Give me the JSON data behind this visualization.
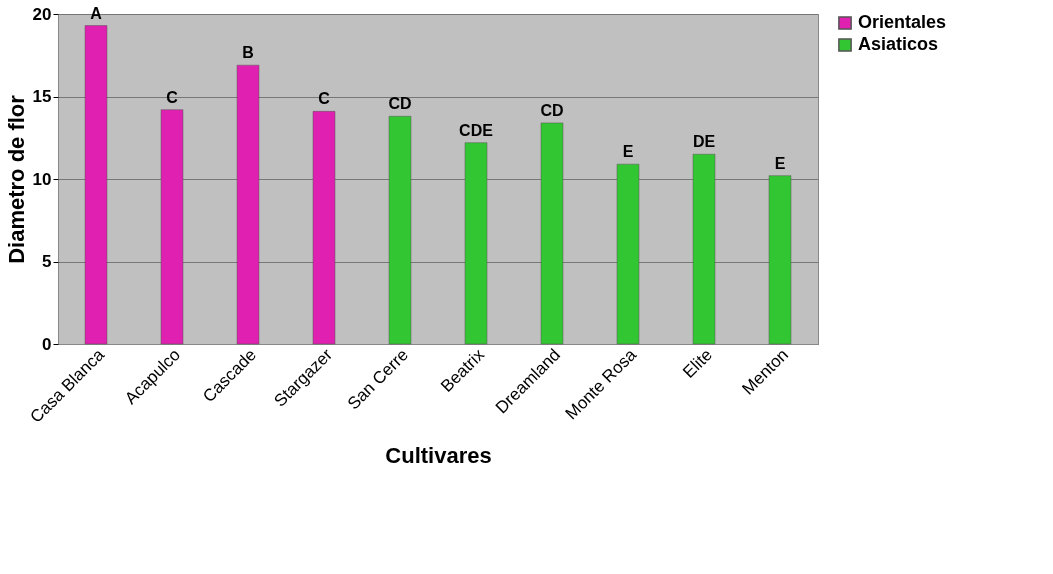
{
  "chart_data": {
    "type": "bar",
    "xlabel": "Cultivares",
    "ylabel": "Diametro de flor",
    "categories": [
      "Casa Blanca",
      "Acapulco",
      "Cascade",
      "Stargazer",
      "San Cerre",
      "Beatrix",
      "Dreamland",
      "Monte Rosa",
      "Elite",
      "Menton"
    ],
    "series": [
      {
        "name": "Orientales",
        "color": "#e020b0",
        "values": [
          19.3,
          14.2,
          16.9,
          14.1,
          null,
          null,
          null,
          null,
          null,
          null
        ],
        "value_labels": [
          "A",
          "C",
          "B",
          "C",
          null,
          null,
          null,
          null,
          null,
          null
        ]
      },
      {
        "name": "Asiaticos",
        "color": "#33c633",
        "values": [
          null,
          null,
          null,
          null,
          13.8,
          12.2,
          13.4,
          10.9,
          11.5,
          10.2
        ],
        "value_labels": [
          null,
          null,
          null,
          null,
          "CD",
          "CDE",
          "CD",
          "E",
          "DE",
          "E"
        ]
      }
    ],
    "ylim": [
      0,
      20
    ],
    "yticks": [
      0,
      5,
      10,
      15,
      20
    ],
    "grid": "y",
    "legend": "right"
  }
}
